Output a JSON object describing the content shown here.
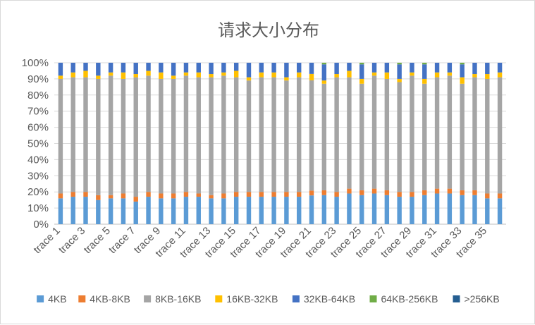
{
  "chart_data": {
    "type": "bar",
    "stacked": true,
    "percent_stacked": true,
    "title": "请求大小分布",
    "xlabel": "",
    "ylabel": "",
    "ylim": [
      0,
      1
    ],
    "y_ticks": [
      "0%",
      "10%",
      "20%",
      "30%",
      "40%",
      "50%",
      "60%",
      "70%",
      "80%",
      "90%",
      "100%"
    ],
    "legend_position": "bottom",
    "grid": true,
    "categories": [
      "trace 1",
      "trace 2",
      "trace 3",
      "trace 4",
      "trace 5",
      "trace 6",
      "trace 7",
      "trace 8",
      "trace 9",
      "trace 10",
      "trace 11",
      "trace 12",
      "trace 13",
      "trace 14",
      "trace 15",
      "trace 16",
      "trace 17",
      "trace 18",
      "trace 19",
      "trace 20",
      "trace 21",
      "trace 22",
      "trace 23",
      "trace 24",
      "trace 25",
      "trace 26",
      "trace 27",
      "trace 28",
      "trace 29",
      "trace 30",
      "trace 31",
      "trace 32",
      "trace 33",
      "trace 34",
      "trace 35",
      "trace 36"
    ],
    "x_tick_labels": [
      "trace 1",
      "trace 3",
      "trace 5",
      "trace 7",
      "trace 9",
      "trace 11",
      "trace 13",
      "trace 15",
      "trace 17",
      "trace 19",
      "trace 21",
      "trace 23",
      "trace 25",
      "trace 27",
      "trace 29",
      "trace 31",
      "trace 33",
      "trace 35"
    ],
    "series": [
      {
        "name": "4KB",
        "color": "#5b9bd5",
        "values": [
          0.16,
          0.17,
          0.17,
          0.15,
          0.16,
          0.16,
          0.14,
          0.17,
          0.16,
          0.16,
          0.17,
          0.17,
          0.16,
          0.16,
          0.17,
          0.17,
          0.17,
          0.17,
          0.17,
          0.17,
          0.18,
          0.18,
          0.17,
          0.19,
          0.18,
          0.19,
          0.18,
          0.17,
          0.17,
          0.18,
          0.19,
          0.19,
          0.18,
          0.18,
          0.16,
          0.16
        ]
      },
      {
        "name": "4KB-8KB",
        "color": "#ed7d31",
        "values": [
          0.03,
          0.03,
          0.03,
          0.03,
          0.02,
          0.03,
          0.03,
          0.03,
          0.03,
          0.03,
          0.03,
          0.02,
          0.02,
          0.03,
          0.03,
          0.03,
          0.03,
          0.03,
          0.03,
          0.03,
          0.03,
          0.03,
          0.03,
          0.03,
          0.03,
          0.03,
          0.03,
          0.03,
          0.03,
          0.03,
          0.03,
          0.03,
          0.03,
          0.03,
          0.03,
          0.03
        ]
      },
      {
        "name": "8KB-16KB",
        "color": "#a5a5a5",
        "values": [
          0.71,
          0.71,
          0.71,
          0.72,
          0.74,
          0.71,
          0.74,
          0.72,
          0.71,
          0.71,
          0.72,
          0.72,
          0.73,
          0.73,
          0.71,
          0.69,
          0.71,
          0.71,
          0.69,
          0.71,
          0.69,
          0.66,
          0.71,
          0.69,
          0.66,
          0.7,
          0.69,
          0.68,
          0.72,
          0.66,
          0.69,
          0.7,
          0.66,
          0.7,
          0.71,
          0.72
        ]
      },
      {
        "name": "16KB-32KB",
        "color": "#ffc000",
        "values": [
          0.02,
          0.03,
          0.04,
          0.02,
          0.02,
          0.04,
          0.02,
          0.03,
          0.04,
          0.02,
          0.02,
          0.03,
          0.02,
          0.02,
          0.04,
          0.02,
          0.03,
          0.03,
          0.02,
          0.03,
          0.04,
          0.02,
          0.02,
          0.04,
          0.03,
          0.02,
          0.04,
          0.02,
          0.02,
          0.03,
          0.03,
          0.02,
          0.04,
          0.02,
          0.03,
          0.03
        ]
      },
      {
        "name": "32KB-64KB",
        "color": "#4472c4",
        "values": [
          0.08,
          0.06,
          0.05,
          0.08,
          0.06,
          0.06,
          0.07,
          0.05,
          0.06,
          0.08,
          0.06,
          0.06,
          0.07,
          0.06,
          0.05,
          0.09,
          0.06,
          0.06,
          0.09,
          0.06,
          0.07,
          0.1,
          0.07,
          0.05,
          0.09,
          0.06,
          0.06,
          0.09,
          0.06,
          0.09,
          0.06,
          0.06,
          0.08,
          0.07,
          0.07,
          0.06
        ]
      },
      {
        "name": "64KB-256KB",
        "color": "#70ad47",
        "values": [
          0.0,
          0.0,
          0.0,
          0.0,
          0.0,
          0.0,
          0.0,
          0.0,
          0.0,
          0.0,
          0.0,
          0.0,
          0.0,
          0.0,
          0.0,
          0.0,
          0.0,
          0.0,
          0.0,
          0.0,
          0.0,
          0.01,
          0.0,
          0.0,
          0.01,
          0.0,
          0.0,
          0.01,
          0.0,
          0.01,
          0.0,
          0.0,
          0.01,
          0.0,
          0.0,
          0.0
        ]
      },
      {
        "name": ">256KB",
        "color": "#255e91",
        "values": [
          0.0,
          0.0,
          0.0,
          0.0,
          0.0,
          0.0,
          0.0,
          0.0,
          0.0,
          0.0,
          0.0,
          0.0,
          0.0,
          0.0,
          0.0,
          0.0,
          0.0,
          0.0,
          0.0,
          0.0,
          0.0,
          0.0,
          0.0,
          0.0,
          0.0,
          0.0,
          0.0,
          0.0,
          0.0,
          0.0,
          0.0,
          0.0,
          0.0,
          0.0,
          0.0,
          0.0
        ]
      }
    ]
  }
}
